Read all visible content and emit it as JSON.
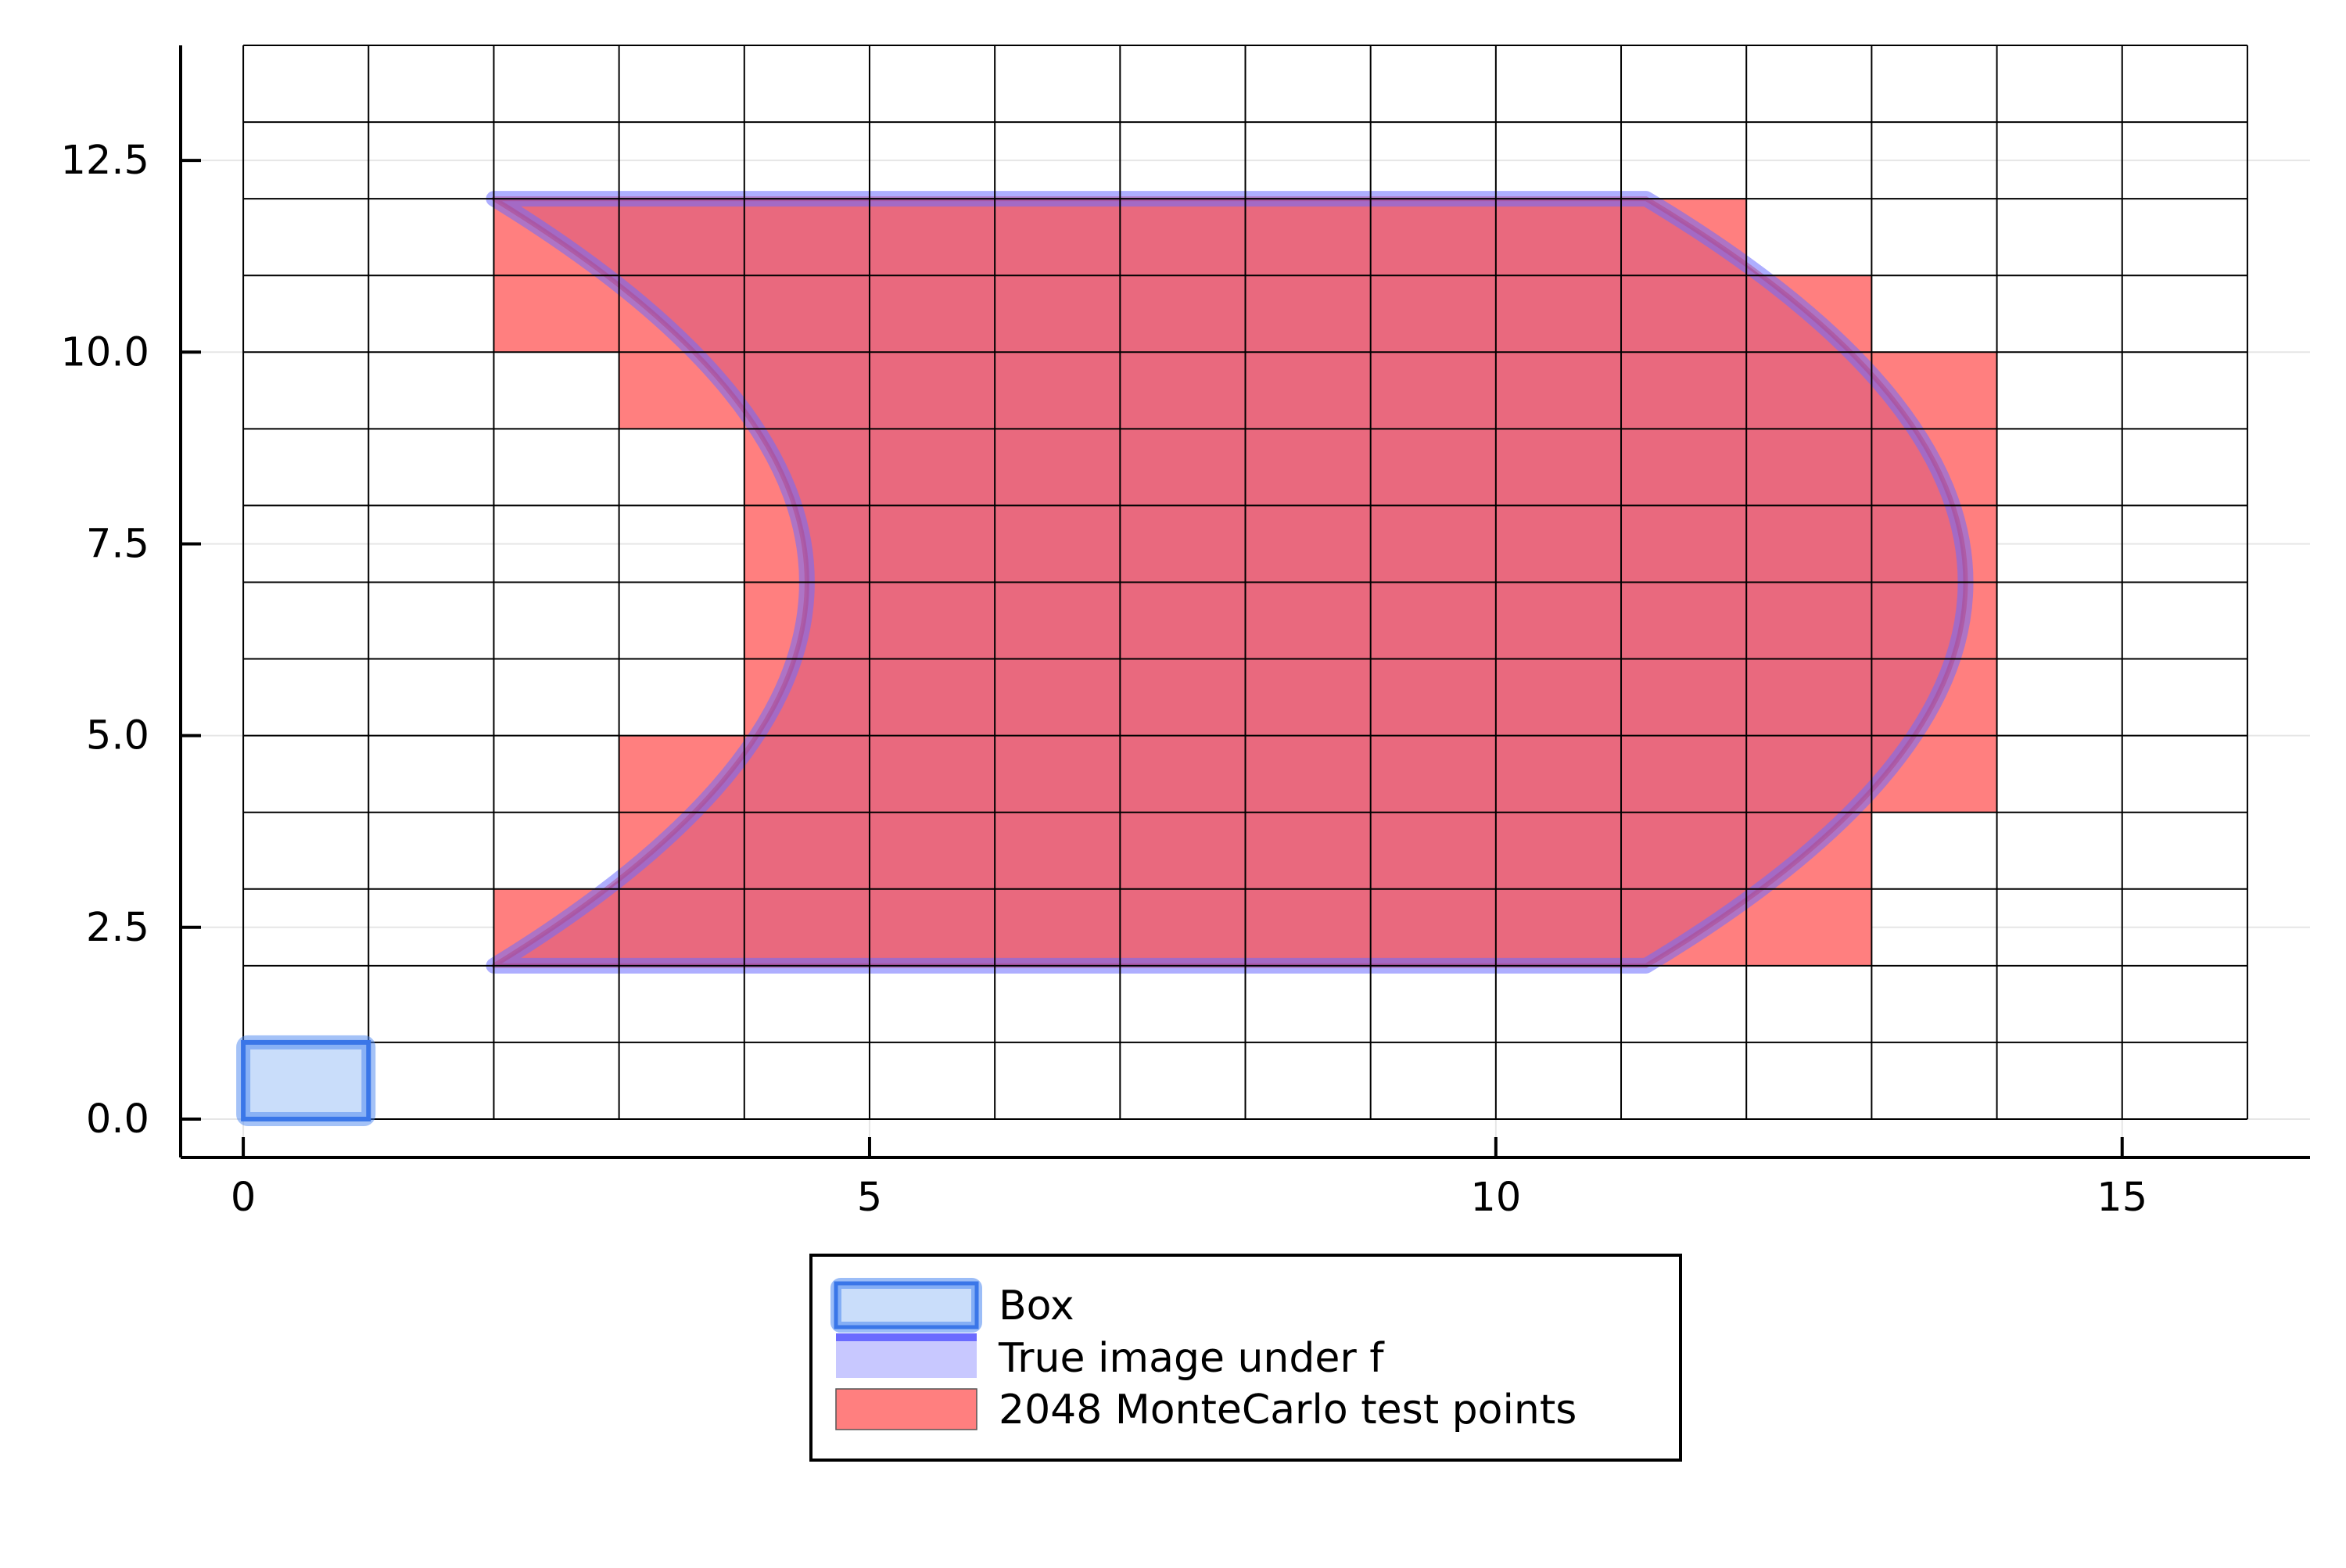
{
  "chart_data": {
    "type": "heatmap",
    "title": "",
    "xlabel": "",
    "ylabel": "",
    "xlim": [
      -0.5,
      16.5
    ],
    "ylim": [
      -0.5,
      14.0
    ],
    "xticks": [
      0,
      5,
      10,
      15
    ],
    "xtick_labels": [
      "0",
      "5",
      "10",
      "15"
    ],
    "yticks": [
      0.0,
      2.5,
      5.0,
      7.5,
      10.0,
      12.5
    ],
    "ytick_labels": [
      "0.0",
      "2.5",
      "5.0",
      "7.5",
      "10.0",
      "12.5"
    ],
    "grid": true,
    "legend_position": "bottom-center",
    "cell_grid": {
      "x_range": [
        0,
        16
      ],
      "y_range": [
        0,
        14
      ],
      "cell_width": 1,
      "cell_height": 1
    },
    "series": [
      {
        "name": "Box",
        "kind": "rectangle",
        "x": [
          0,
          1
        ],
        "y": [
          0,
          1
        ],
        "fill_color": "#c9ddfa",
        "stroke_color": "#4a86f0"
      },
      {
        "name": "True image under f",
        "kind": "region",
        "top_edge": {
          "y": 12,
          "x_from": 2,
          "x_to": 11.2
        },
        "bottom_edge": {
          "y": 2,
          "x_from": 2,
          "x_to": 11.2
        },
        "left_boundary": {
          "x_at_ends": 2,
          "x_at_middle": 4.5,
          "y_middle": 7
        },
        "right_boundary": {
          "x_at_ends": 11.2,
          "x_at_middle": 13.75,
          "y_middle": 7
        },
        "fill_color": "#c8c8ff",
        "stroke_color": "#6b6bff"
      },
      {
        "name": "2048 MonteCarlo test points",
        "kind": "cells",
        "fill_color": "#ff7f7f",
        "rows": [
          {
            "y": 2,
            "x_from": 2,
            "x_to": 13
          },
          {
            "y": 3,
            "x_from": 3,
            "x_to": 13
          },
          {
            "y": 4,
            "x_from": 3,
            "x_to": 14
          },
          {
            "y": 5,
            "x_from": 4,
            "x_to": 14
          },
          {
            "y": 6,
            "x_from": 4,
            "x_to": 14
          },
          {
            "y": 7,
            "x_from": 4,
            "x_to": 14
          },
          {
            "y": 8,
            "x_from": 4,
            "x_to": 14
          },
          {
            "y": 9,
            "x_from": 3,
            "x_to": 14
          },
          {
            "y": 10,
            "x_from": 2,
            "x_to": 13
          },
          {
            "y": 11,
            "x_from": 2,
            "x_to": 12
          }
        ]
      }
    ],
    "colors": {
      "axis": "#000000",
      "gridline": "#e6e6e6",
      "cell_line": "#000000",
      "overlap": "#e5657e"
    }
  },
  "legend": {
    "items": [
      {
        "label": "Box",
        "symbol": "box"
      },
      {
        "label": "True image under f",
        "symbol": "region"
      },
      {
        "label": "2048 MonteCarlo test points",
        "symbol": "cells"
      }
    ]
  }
}
